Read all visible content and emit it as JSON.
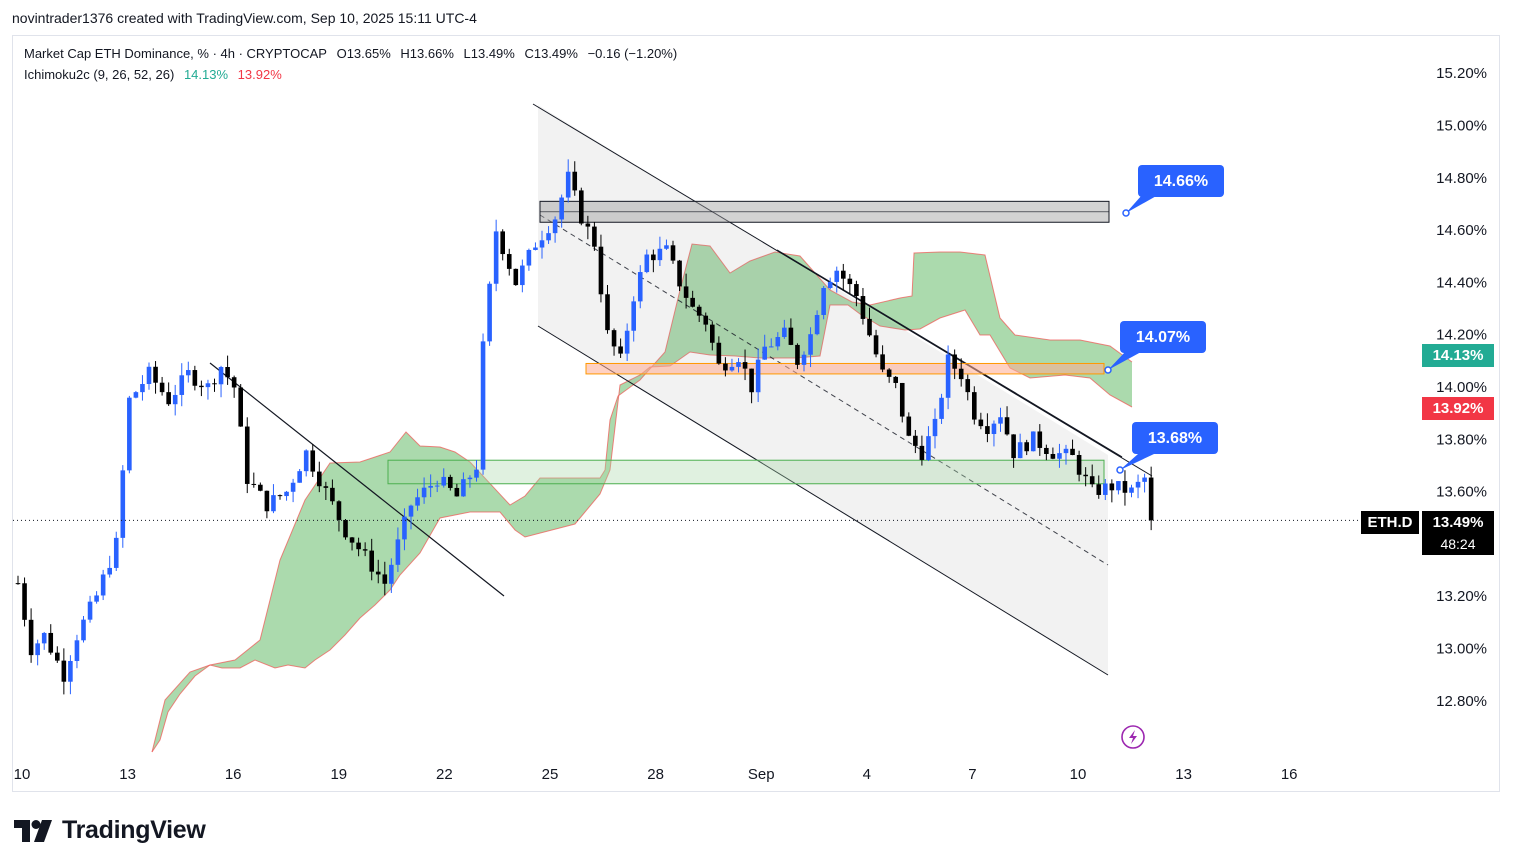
{
  "header": {
    "created_by": "novintrader1376 created with TradingView.com, Sep 10, 2025 15:11 UTC-4"
  },
  "legend": {
    "symbol": "Market Cap ETH Dominance, % · 4h · CRYPTOCAP",
    "open": "O13.65%",
    "high": "H13.66%",
    "low": "L13.49%",
    "close": "C13.49%",
    "change": "−0.16 (−1.20%)",
    "indicator_name": "Ichimoku2c (9, 26, 52, 26)",
    "indicator_val1": "14.13%",
    "indicator_val2": "13.92%"
  },
  "brand": {
    "name": "TradingView"
  },
  "price_labels": {
    "ichimoku_green": "14.13%",
    "ichimoku_red": "13.92%",
    "ticker": "ETH.D",
    "last_price": "13.49%",
    "countdown": "48:24"
  },
  "callouts": [
    "14.66%",
    "14.07%",
    "13.68%"
  ],
  "colors": {
    "up_candle": "#2962ff",
    "down_candle": "#000000",
    "cloud_fill": "#66bb6a",
    "cloud_edge": "#ef5350",
    "callout": "#2962ff",
    "accent_green": "#22ab94",
    "accent_red": "#f23645"
  },
  "chart_data": {
    "type": "candlestick",
    "timeframe": "4h",
    "y_axis": {
      "ticks": [
        15.2,
        15.0,
        14.8,
        14.6,
        14.4,
        14.2,
        14.0,
        13.8,
        13.6,
        13.2,
        13.0,
        12.8
      ],
      "tick_labels": [
        "15.20%",
        "15.00%",
        "14.80%",
        "14.60%",
        "14.40%",
        "14.20%",
        "14.00%",
        "13.80%",
        "13.60%",
        "13.20%",
        "13.00%",
        "12.80%"
      ],
      "range": [
        12.65,
        15.35
      ]
    },
    "x_axis": {
      "tick_labels": [
        "10",
        "13",
        "16",
        "19",
        "22",
        "25",
        "28",
        "Sep",
        "4",
        "7",
        "10",
        "13",
        "16"
      ]
    },
    "waypoints": [
      [
        0,
        13.25
      ],
      [
        2,
        13.0
      ],
      [
        4,
        13.05
      ],
      [
        7,
        12.9
      ],
      [
        9,
        13.05
      ],
      [
        12,
        13.2
      ],
      [
        15,
        13.4
      ],
      [
        17,
        13.95
      ],
      [
        20,
        14.05
      ],
      [
        23,
        13.95
      ],
      [
        26,
        14.05
      ],
      [
        29,
        14.0
      ],
      [
        31,
        14.08
      ],
      [
        33,
        14.0
      ],
      [
        35,
        13.65
      ],
      [
        38,
        13.55
      ],
      [
        41,
        13.6
      ],
      [
        44,
        13.75
      ],
      [
        47,
        13.6
      ],
      [
        50,
        13.45
      ],
      [
        53,
        13.35
      ],
      [
        56,
        13.25
      ],
      [
        60,
        13.55
      ],
      [
        64,
        13.65
      ],
      [
        67,
        13.58
      ],
      [
        70,
        13.7
      ],
      [
        71,
        14.15
      ],
      [
        73,
        14.6
      ],
      [
        76,
        14.4
      ],
      [
        79,
        14.55
      ],
      [
        82,
        14.65
      ],
      [
        84,
        14.8
      ],
      [
        86,
        14.65
      ],
      [
        88,
        14.55
      ],
      [
        90,
        14.2
      ],
      [
        92,
        14.1
      ],
      [
        94,
        14.35
      ],
      [
        96,
        14.5
      ],
      [
        99,
        14.52
      ],
      [
        101,
        14.4
      ],
      [
        103,
        14.3
      ],
      [
        105,
        14.25
      ],
      [
        107,
        14.08
      ],
      [
        110,
        14.12
      ],
      [
        112,
        14.0
      ],
      [
        114,
        14.15
      ],
      [
        117,
        14.2
      ],
      [
        119,
        14.1
      ],
      [
        121,
        14.2
      ],
      [
        123,
        14.4
      ],
      [
        125,
        14.45
      ],
      [
        128,
        14.35
      ],
      [
        130,
        14.2
      ],
      [
        132,
        14.05
      ],
      [
        134,
        14.0
      ],
      [
        136,
        13.8
      ],
      [
        138,
        13.75
      ],
      [
        140,
        13.85
      ],
      [
        142,
        14.1
      ],
      [
        144,
        14.05
      ],
      [
        146,
        13.9
      ],
      [
        148,
        13.85
      ],
      [
        150,
        13.9
      ],
      [
        152,
        13.75
      ],
      [
        155,
        13.8
      ],
      [
        158,
        13.75
      ],
      [
        161,
        13.73
      ],
      [
        164,
        13.6
      ],
      [
        167,
        13.62
      ],
      [
        170,
        13.6
      ],
      [
        172,
        13.65
      ],
      [
        173,
        13.49
      ]
    ],
    "levels": {
      "resistance_zone": [
        14.63,
        14.71
      ],
      "orange_zone": [
        14.05,
        14.09
      ],
      "green_zone": [
        13.63,
        13.72
      ]
    },
    "current_price": 13.49,
    "ichimoku_span_a": 14.13,
    "ichimoku_span_b": 13.92
  }
}
